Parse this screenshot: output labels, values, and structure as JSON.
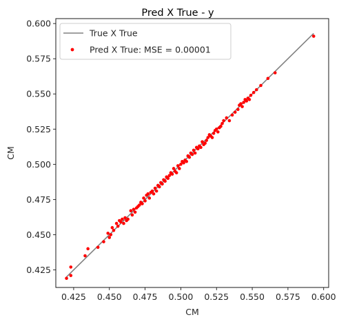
{
  "chart_data": {
    "type": "scatter",
    "title": "Pred X True - y",
    "xlabel": "CM",
    "ylabel": "CM",
    "xlim": [
      0.4125,
      0.6035
    ],
    "ylim": [
      0.4125,
      0.6035
    ],
    "xticks": [
      0.425,
      0.45,
      0.475,
      0.5,
      0.525,
      0.55,
      0.575,
      0.6
    ],
    "yticks": [
      0.425,
      0.45,
      0.475,
      0.5,
      0.525,
      0.55,
      0.575,
      0.6
    ],
    "xtick_labels": [
      "0.425",
      "0.450",
      "0.475",
      "0.500",
      "0.525",
      "0.550",
      "0.575",
      "0.600"
    ],
    "ytick_labels": [
      "0.425",
      "0.450",
      "0.475",
      "0.500",
      "0.525",
      "0.550",
      "0.575",
      "0.600"
    ],
    "grid": false,
    "legend": {
      "position": "top-left",
      "entries": [
        "True X True",
        "Pred X True: MSE = 0.00001"
      ]
    },
    "series": [
      {
        "name": "True X True",
        "kind": "line",
        "color": "#808080",
        "x": [
          0.42,
          0.593
        ],
        "y": [
          0.42,
          0.593
        ]
      },
      {
        "name": "Pred X True: MSE = 0.00001",
        "kind": "scatter",
        "color": "#ff0000",
        "x": [
          0.42,
          0.423,
          0.423,
          0.433,
          0.435,
          0.442,
          0.446,
          0.449,
          0.45,
          0.451,
          0.452,
          0.453,
          0.455,
          0.456,
          0.457,
          0.458,
          0.459,
          0.46,
          0.461,
          0.462,
          0.463,
          0.465,
          0.466,
          0.467,
          0.468,
          0.469,
          0.47,
          0.471,
          0.472,
          0.473,
          0.474,
          0.475,
          0.476,
          0.477,
          0.478,
          0.479,
          0.48,
          0.481,
          0.482,
          0.483,
          0.484,
          0.485,
          0.486,
          0.487,
          0.488,
          0.489,
          0.49,
          0.491,
          0.492,
          0.493,
          0.494,
          0.495,
          0.496,
          0.497,
          0.498,
          0.499,
          0.5,
          0.501,
          0.502,
          0.503,
          0.504,
          0.505,
          0.506,
          0.507,
          0.508,
          0.509,
          0.51,
          0.511,
          0.512,
          0.513,
          0.514,
          0.515,
          0.516,
          0.517,
          0.518,
          0.519,
          0.52,
          0.521,
          0.522,
          0.523,
          0.524,
          0.525,
          0.526,
          0.527,
          0.528,
          0.529,
          0.53,
          0.532,
          0.534,
          0.536,
          0.538,
          0.54,
          0.541,
          0.542,
          0.543,
          0.544,
          0.545,
          0.546,
          0.547,
          0.548,
          0.549,
          0.551,
          0.553,
          0.556,
          0.561,
          0.566,
          0.593
        ],
        "y": [
          0.419,
          0.421,
          0.427,
          0.435,
          0.44,
          0.441,
          0.445,
          0.451,
          0.448,
          0.45,
          0.455,
          0.453,
          0.458,
          0.456,
          0.46,
          0.459,
          0.461,
          0.458,
          0.462,
          0.46,
          0.461,
          0.467,
          0.464,
          0.468,
          0.466,
          0.469,
          0.47,
          0.471,
          0.473,
          0.472,
          0.476,
          0.474,
          0.478,
          0.479,
          0.476,
          0.48,
          0.481,
          0.479,
          0.483,
          0.481,
          0.485,
          0.484,
          0.487,
          0.486,
          0.489,
          0.488,
          0.491,
          0.49,
          0.492,
          0.494,
          0.493,
          0.497,
          0.495,
          0.494,
          0.499,
          0.497,
          0.5,
          0.502,
          0.501,
          0.503,
          0.502,
          0.506,
          0.505,
          0.508,
          0.507,
          0.51,
          0.508,
          0.512,
          0.511,
          0.513,
          0.512,
          0.516,
          0.514,
          0.515,
          0.517,
          0.519,
          0.521,
          0.52,
          0.519,
          0.522,
          0.524,
          0.525,
          0.523,
          0.526,
          0.527,
          0.529,
          0.531,
          0.533,
          0.531,
          0.535,
          0.537,
          0.539,
          0.542,
          0.543,
          0.541,
          0.544,
          0.546,
          0.545,
          0.547,
          0.546,
          0.549,
          0.551,
          0.553,
          0.556,
          0.561,
          0.565,
          0.591
        ]
      }
    ]
  }
}
